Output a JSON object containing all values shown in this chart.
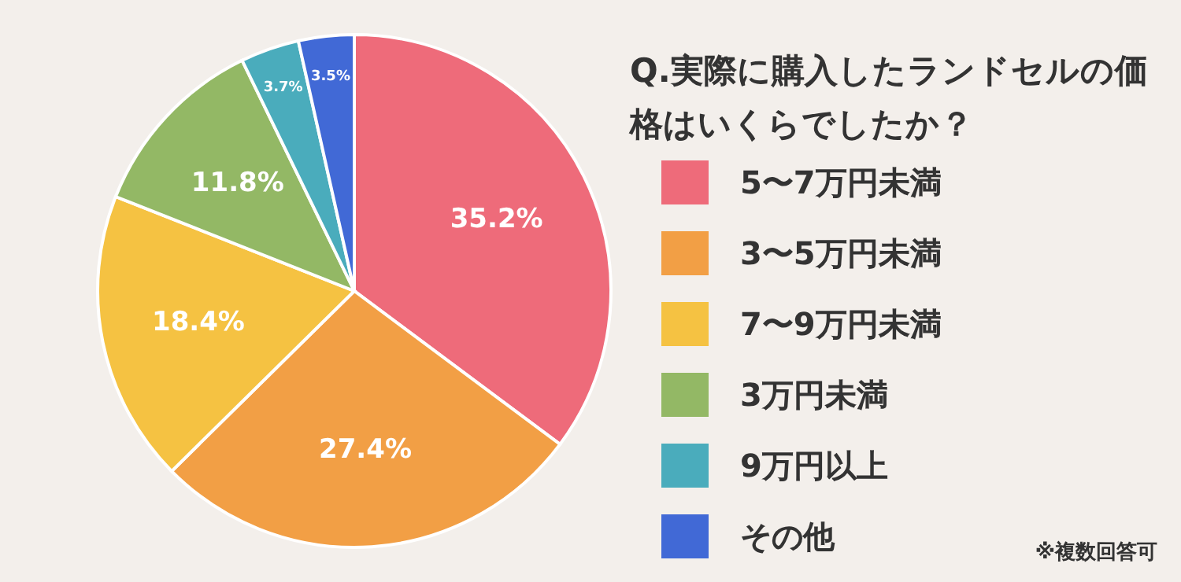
{
  "chart_data": {
    "type": "pie",
    "title": "Q.実際に購入したランドセルの価格はいくらでしたか？",
    "categories": [
      "5〜7万円未満",
      "3〜5万円未満",
      "7〜9万円未満",
      "3万円未満",
      "9万円以上",
      "その他"
    ],
    "values": [
      35.2,
      27.4,
      18.4,
      11.8,
      3.7,
      3.5
    ],
    "value_labels": [
      "35.2%",
      "27.4%",
      "18.4%",
      "11.8%",
      "3.7%",
      "3.5%"
    ],
    "colors": [
      "#ee6b7a",
      "#f29f45",
      "#f5c242",
      "#93b865",
      "#4aacbc",
      "#4169d6"
    ],
    "legend": "right",
    "annotations": [
      "※複数回答可"
    ]
  }
}
